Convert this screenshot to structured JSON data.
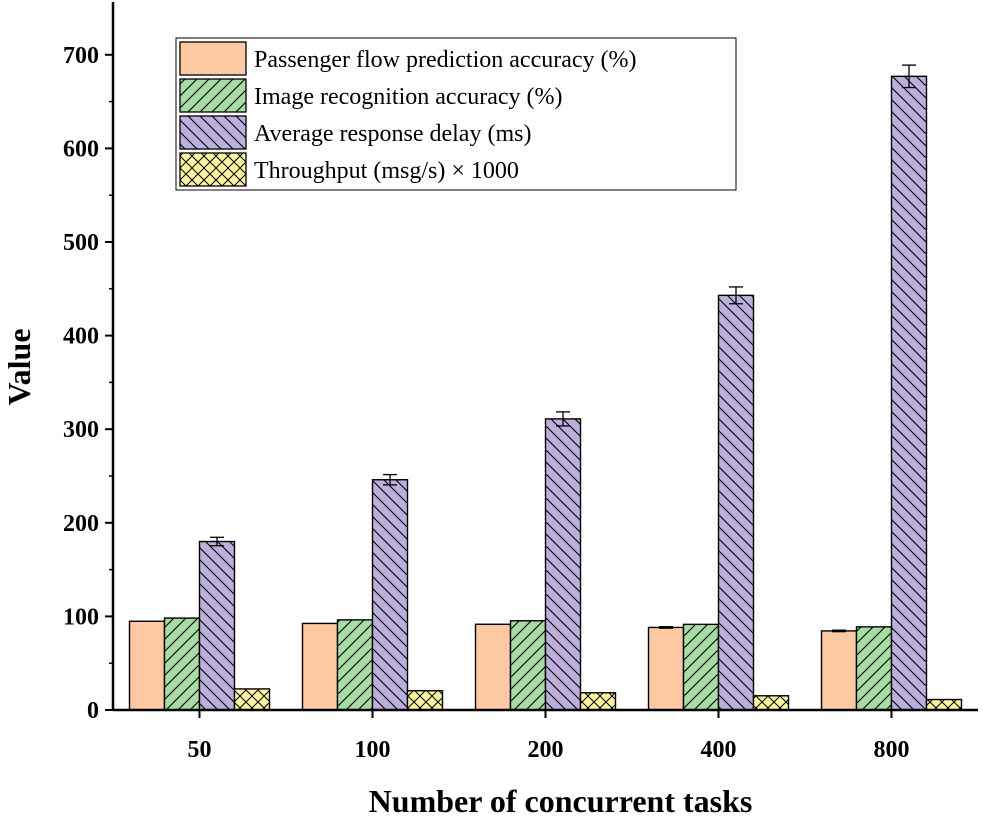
{
  "chart_data": {
    "type": "bar",
    "title": "",
    "xlabel": "Number of concurrent tasks",
    "ylabel": "Value",
    "categories": [
      "50",
      "100",
      "200",
      "400",
      "800"
    ],
    "ylim": [
      0,
      750
    ],
    "yticks": [
      0,
      100,
      200,
      300,
      400,
      500,
      600,
      700
    ],
    "legend_position": "top-left",
    "grid": false,
    "series": [
      {
        "name": "Passenger flow prediction accuracy (%)",
        "values": [
          94.8,
          92.5,
          91.6,
          88.2,
          84.5
        ],
        "errors": [
          0,
          0,
          0,
          0.8,
          0.8
        ],
        "color": "#FDC9A2",
        "pattern": "none"
      },
      {
        "name": "Image recognition accuracy (%)",
        "values": [
          98.2,
          96.3,
          95.3,
          91.5,
          88.8
        ],
        "errors": [
          0,
          0,
          0,
          0,
          0
        ],
        "color": "#A8DCA5",
        "pattern": "diagonal-up"
      },
      {
        "name": "Average response delay (ms)",
        "values": [
          180,
          246,
          311,
          443,
          677
        ],
        "errors": [
          4.5,
          5.5,
          7.5,
          9,
          12
        ],
        "color": "#BCAFDB",
        "pattern": "diagonal-down"
      },
      {
        "name": "Throughput (msg/s) × 1000",
        "values": [
          22.5,
          20.6,
          18.4,
          15.2,
          11.2
        ],
        "errors": [
          0,
          0,
          0,
          0,
          0
        ],
        "color": "#FAF4A0",
        "pattern": "crosshatch"
      }
    ]
  }
}
